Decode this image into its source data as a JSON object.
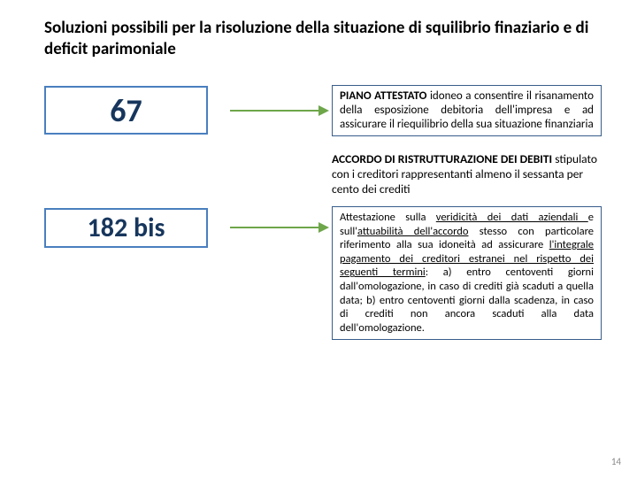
{
  "title": "Soluzioni possibili per la risoluzione della situazione di squilibrio finaziario e di deficit parimoniale",
  "box67": "67",
  "box182": "182 bis",
  "desc67_a": "PIANO ATTESTATO idoneo a consentire il risanamento della esposizione debitoria dell'impresa e ad assicurare il riequilibrio della sua situazione finanziaria",
  "accordo_bold": "ACCORDO DI RISTRUTTURAZIONE DEI DEBITI",
  "accordo_rest": "stipulato con i creditori rappresentanti almeno il sessanta per cento dei crediti",
  "desc182_pre": "Attestazione sulla ",
  "desc182_u1": "veridicità dei dati aziendali ",
  "desc182_mid1": "e sull'",
  "desc182_u2": "attuabilità dell'accordo",
  "desc182_mid2": " stesso con particolare riferimento alla sua idoneità ad assicurare ",
  "desc182_u3": "l'integrale pagamento dei creditori estranei nel rispetto dei seguenti termini",
  "desc182_rest": ": a) entro centoventi giorni dall'omologazione, in caso di crediti già scaduti a quella data; b) entro centoventi giorni dalla scadenza, in caso di crediti non ancora scaduti alla data dell'omologazione.",
  "page": "14",
  "arrow_color": "#6ea64a"
}
